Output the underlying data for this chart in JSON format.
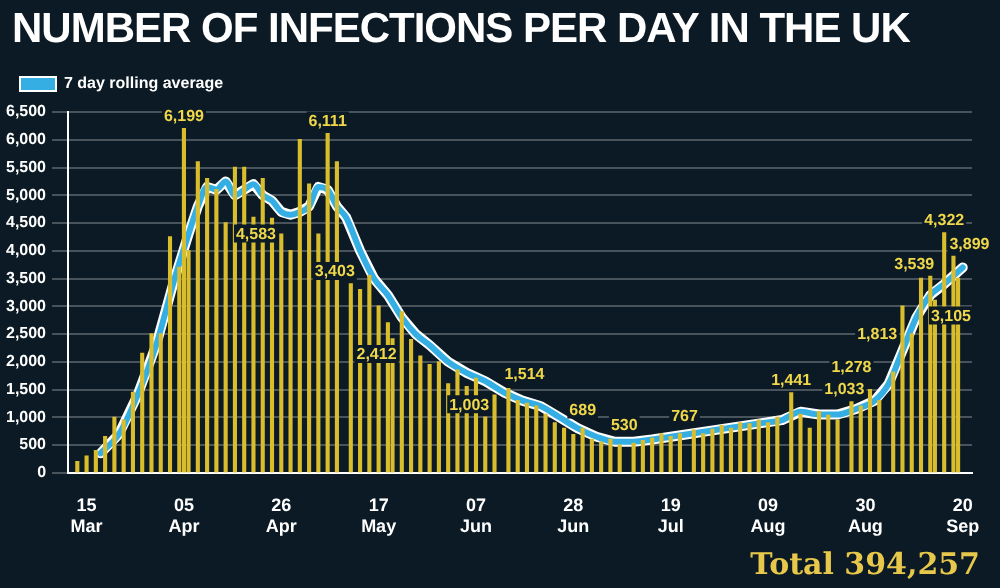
{
  "chart_data": {
    "type": "bar",
    "title": "NUMBER OF INFECTIONS PER DAY IN THE UK",
    "annotations": [
      "Total 394,257"
    ],
    "legend": "top left",
    "grid": "y",
    "xlim": [
      "--03-11",
      "--09-22"
    ],
    "xticks": [
      {
        "value": "--03-15",
        "label": "15 Mar"
      },
      {
        "value": "--04-05",
        "label": "05 Apr"
      },
      {
        "value": "--04-26",
        "label": "26 Apr"
      },
      {
        "value": "--05-17",
        "label": "17 May"
      },
      {
        "value": "--06-07",
        "label": "07 Jun"
      },
      {
        "value": "--06-28",
        "label": "28 Jun"
      },
      {
        "value": "--07-19",
        "label": "19 Jul"
      },
      {
        "value": "--08-09",
        "label": "09 Aug"
      },
      {
        "value": "--08-30",
        "label": "30 Aug"
      },
      {
        "value": "--09-20",
        "label": "20 Sep"
      }
    ],
    "ylim": [
      0,
      6500
    ],
    "yticks": [
      0,
      500,
      {
        "value": 1000,
        "label": "1,000"
      },
      {
        "value": 1500,
        "label": "1,500"
      },
      {
        "value": 2000,
        "label": "2,000"
      },
      {
        "value": 2500,
        "label": "2,500"
      },
      {
        "value": 3000,
        "label": "3,000"
      },
      {
        "value": 3500,
        "label": "3,500"
      },
      {
        "value": 4000,
        "label": "4,000"
      },
      {
        "value": 4500,
        "label": "4,500"
      },
      {
        "value": 5000,
        "label": "5,000"
      },
      {
        "value": 5500,
        "label": "5,500"
      },
      {
        "value": 6000,
        "label": "6,000"
      },
      {
        "value": 6500,
        "label": "6,500"
      }
    ],
    "series": [
      {
        "type": "bar",
        "color": "#d9bd2c",
        "x": [
          "--03-13",
          "--03-15",
          "--03-17",
          "--03-19",
          "--03-21",
          "--03-23",
          "--03-25",
          "--03-27",
          "--03-29",
          "--03-31",
          "--04-02",
          "--04-04",
          "--04-05",
          "--04-06",
          "--04-08",
          "--04-10",
          "--04-12",
          "--04-14",
          "--04-16",
          "--04-18",
          "--04-20",
          "--04-22",
          "--04-24",
          "--04-26",
          "--04-28",
          "--04-30",
          "--05-02",
          "--05-04",
          "--05-06",
          "--05-08",
          "--05-11",
          "--05-13",
          "--05-15",
          "--05-17",
          "--05-19",
          "--05-20",
          "--05-22",
          "--05-24",
          "--05-26",
          "--05-28",
          "--05-30",
          "--06-01",
          "--06-03",
          "--06-05",
          "--06-07",
          "--06-09",
          "--06-11",
          "--06-14",
          "--06-16",
          "--06-18",
          "--06-20",
          "--06-22",
          "--06-24",
          "--06-26",
          "--06-28",
          "--06-30",
          "--07-02",
          "--07-04",
          "--07-06",
          "--07-08",
          "--07-11",
          "--07-13",
          "--07-15",
          "--07-17",
          "--07-19",
          "--07-21",
          "--07-24",
          "--07-26",
          "--07-28",
          "--07-30",
          "--08-01",
          "--08-03",
          "--08-05",
          "--08-07",
          "--08-09",
          "--08-11",
          "--08-14",
          "--08-16",
          "--08-18",
          "--08-20",
          "--08-22",
          "--08-24",
          "--08-27",
          "--08-29",
          "--08-31",
          "--09-02",
          "--09-05",
          "--09-07",
          "--09-09",
          "--09-11",
          "--09-13",
          "--09-14",
          "--09-16",
          "--09-18",
          "--09-19"
        ],
        "values": [
          200,
          300,
          400,
          650,
          1000,
          950,
          1450,
          2150,
          2500,
          2500,
          4250,
          3700,
          6199,
          4000,
          5600,
          5300,
          5100,
          4500,
          5500,
          5500,
          4600,
          5300,
          4583,
          4300,
          4000,
          6000,
          5200,
          4300,
          6111,
          5600,
          3403,
          3300,
          3550,
          3000,
          2700,
          2412,
          2900,
          2400,
          2100,
          1950,
          2000,
          1600,
          1850,
          1550,
          1700,
          1003,
          1400,
          1514,
          1300,
          1250,
          1200,
          1050,
          900,
          800,
          689,
          800,
          600,
          550,
          600,
          500,
          530,
          580,
          620,
          700,
          650,
          700,
          767,
          700,
          780,
          850,
          800,
          900,
          880,
          950,
          900,
          1000,
          1441,
          1050,
          800,
          1100,
          1033,
          950,
          1278,
          1200,
          1500,
          1300,
          1813,
          3000,
          2500,
          3500,
          3539,
          3105,
          4322,
          3899,
          3500
        ],
        "value_labels": [
          null,
          null,
          null,
          null,
          null,
          null,
          null,
          null,
          null,
          null,
          null,
          null,
          "6,199",
          null,
          null,
          null,
          null,
          null,
          null,
          null,
          null,
          null,
          "4,583",
          null,
          null,
          null,
          null,
          null,
          "6,111",
          null,
          "3,403",
          null,
          null,
          null,
          null,
          "2,412",
          null,
          null,
          null,
          null,
          null,
          null,
          null,
          null,
          null,
          "1,003",
          null,
          "1,514",
          null,
          null,
          null,
          null,
          null,
          null,
          "689",
          null,
          null,
          null,
          null,
          null,
          "530",
          null,
          null,
          null,
          null,
          null,
          "767",
          null,
          null,
          null,
          null,
          null,
          null,
          null,
          null,
          null,
          "1,441",
          null,
          null,
          null,
          "1,033",
          null,
          "1,278",
          null,
          null,
          null,
          "1,813",
          null,
          null,
          null,
          "3,539",
          "3,105",
          "4,322",
          "3,899",
          null
        ]
      },
      {
        "type": "line",
        "name": "7 day rolling average",
        "color": "#35aee3",
        "x": [
          "--03-18",
          "--03-22",
          "--03-26",
          "--03-30",
          "--04-03",
          "--04-06",
          "--04-08",
          "--04-10",
          "--04-12",
          "--04-14",
          "--04-16",
          "--04-18",
          "--04-20",
          "--04-22",
          "--04-24",
          "--04-26",
          "--04-28",
          "--04-30",
          "--05-02",
          "--05-04",
          "--05-06",
          "--05-08",
          "--05-10",
          "--05-13",
          "--05-16",
          "--05-19",
          "--05-22",
          "--05-25",
          "--05-28",
          "--06-01",
          "--06-05",
          "--06-09",
          "--06-13",
          "--06-17",
          "--06-21",
          "--06-25",
          "--06-29",
          "--07-03",
          "--07-07",
          "--07-11",
          "--07-15",
          "--07-19",
          "--07-23",
          "--07-27",
          "--07-31",
          "--08-04",
          "--08-08",
          "--08-12",
          "--08-16",
          "--08-20",
          "--08-24",
          "--08-28",
          "--09-01",
          "--09-04",
          "--09-07",
          "--09-10",
          "--09-13",
          "--09-16",
          "--09-20"
        ],
        "values": [
          350,
          700,
          1400,
          2300,
          3500,
          4300,
          4800,
          5150,
          5100,
          5250,
          5000,
          5100,
          5200,
          5000,
          4900,
          4700,
          4650,
          4700,
          4800,
          5150,
          5100,
          4800,
          4600,
          4000,
          3500,
          3200,
          2800,
          2500,
          2300,
          2000,
          1800,
          1650,
          1450,
          1300,
          1200,
          1000,
          800,
          650,
          560,
          560,
          600,
          650,
          700,
          750,
          800,
          850,
          900,
          950,
          1100,
          1050,
          1050,
          1150,
          1300,
          1600,
          2200,
          2800,
          3200,
          3400,
          3700
        ]
      }
    ]
  }
}
